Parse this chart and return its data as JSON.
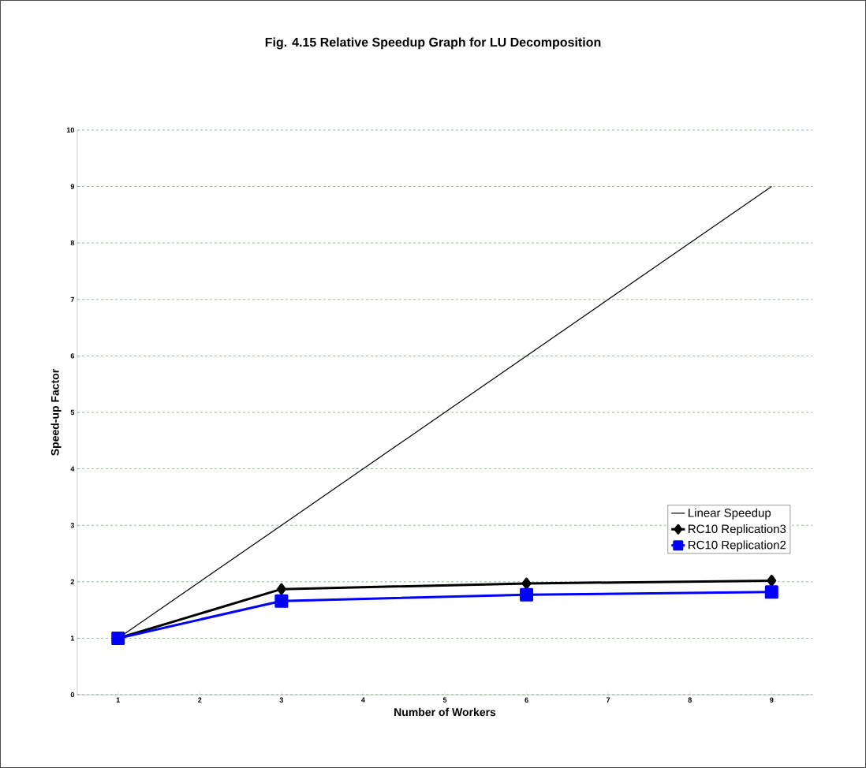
{
  "chart_data": {
    "type": "line",
    "title": "Fig. 4.15     Relative Speedup Graph for LU Decomposition",
    "xlabel": "Number of Workers",
    "ylabel": "Speed-up Factor",
    "x": [
      1,
      3,
      6,
      9
    ],
    "series": [
      {
        "name": "Linear Speedup",
        "color": "#000000",
        "marker": "none",
        "values": [
          1,
          3,
          6,
          9
        ]
      },
      {
        "name": "RC10  Replication3",
        "color": "#000000",
        "marker": "diamond",
        "values": [
          1,
          1.87,
          1.97,
          2.02
        ]
      },
      {
        "name": "RC10  Replication2",
        "color": "#0000ff",
        "marker": "square",
        "values": [
          1,
          1.66,
          1.77,
          1.82
        ]
      }
    ],
    "xlim": [
      0.5,
      9.5
    ],
    "xticks": [
      1,
      2,
      3,
      4,
      5,
      6,
      7,
      8,
      9
    ],
    "ylim": [
      0,
      10
    ],
    "yticks": [
      0,
      1,
      2,
      3,
      4,
      5,
      6,
      7,
      8,
      9,
      10
    ],
    "grid": "y",
    "legend": "right",
    "line_style": "solid"
  }
}
